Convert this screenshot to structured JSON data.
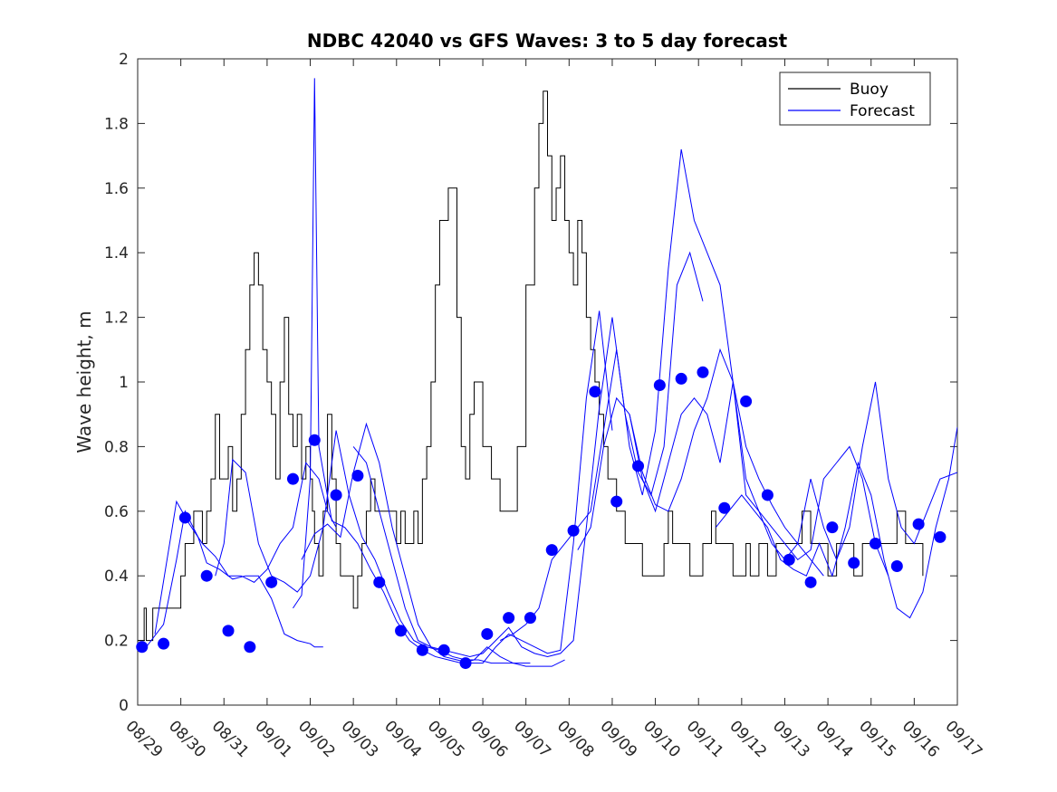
{
  "chart_data": {
    "type": "line",
    "title": "NDBC 42040 vs GFS Waves: 3 to 5 day forecast",
    "xlabel": "",
    "ylabel": "Wave height, m",
    "xlim": [
      0,
      19
    ],
    "ylim": [
      0,
      2
    ],
    "yticks": [
      0,
      0.2,
      0.4,
      0.6,
      0.8,
      1,
      1.2,
      1.4,
      1.6,
      1.8,
      2
    ],
    "ytick_labels": [
      "0",
      "0.2",
      "0.4",
      "0.6",
      "0.8",
      "1",
      "1.2",
      "1.4",
      "1.6",
      "1.8",
      "2"
    ],
    "xticks": [
      0,
      1,
      2,
      3,
      4,
      5,
      6,
      7,
      8,
      9,
      10,
      11,
      12,
      13,
      14,
      15,
      16,
      17,
      18,
      19
    ],
    "xtick_labels": [
      "08/29",
      "08/30",
      "08/31",
      "09/01",
      "09/02",
      "09/03",
      "09/04",
      "09/05",
      "09/06",
      "09/07",
      "09/08",
      "09/09",
      "09/10",
      "09/11",
      "09/12",
      "09/13",
      "09/14",
      "09/15",
      "09/16",
      "09/17"
    ],
    "x_unit": "days since 08/29 00:00",
    "legend": {
      "position": "top-right",
      "entries": [
        {
          "label": "Buoy",
          "color": "#000000"
        },
        {
          "label": "Forecast",
          "color": "#0000ff"
        }
      ]
    },
    "series": [
      {
        "name": "Buoy",
        "color": "#000000",
        "style": "step",
        "x": [
          0,
          0.15,
          0.2,
          0.25,
          0.35,
          0.55,
          0.75,
          1.0,
          1.1,
          1.3,
          1.5,
          1.6,
          1.7,
          1.8,
          1.9,
          2.0,
          2.1,
          2.2,
          2.3,
          2.4,
          2.5,
          2.6,
          2.7,
          2.8,
          2.9,
          3.0,
          3.1,
          3.2,
          3.3,
          3.4,
          3.5,
          3.6,
          3.7,
          3.8,
          3.9,
          4.0,
          4.05,
          4.1,
          4.2,
          4.3,
          4.4,
          4.5,
          4.6,
          4.7,
          4.8,
          4.9,
          5.0,
          5.1,
          5.2,
          5.3,
          5.4,
          5.5,
          5.6,
          5.7,
          5.8,
          5.9,
          6.0,
          6.1,
          6.2,
          6.3,
          6.4,
          6.5,
          6.6,
          6.7,
          6.8,
          6.9,
          7.0,
          7.2,
          7.4,
          7.5,
          7.6,
          7.7,
          7.8,
          8.0,
          8.2,
          8.4,
          8.6,
          8.8,
          9.0,
          9.2,
          9.3,
          9.4,
          9.5,
          9.6,
          9.7,
          9.8,
          9.9,
          10.0,
          10.1,
          10.2,
          10.3,
          10.4,
          10.5,
          10.6,
          10.7,
          10.8,
          10.9,
          11.0,
          11.1,
          11.2,
          11.3,
          11.4,
          11.5,
          11.6,
          11.7,
          11.8,
          11.9,
          12.0,
          12.1,
          12.2,
          12.3,
          12.4,
          12.5,
          12.6,
          12.7,
          12.8,
          12.9,
          13.0,
          13.1,
          13.2,
          13.3,
          13.4,
          13.5,
          13.6,
          13.7,
          13.8,
          13.9,
          14.0,
          14.1,
          14.2,
          14.4,
          14.6,
          14.8,
          15.0,
          15.2,
          15.4,
          15.6,
          15.8,
          16.0,
          16.2,
          16.4,
          16.6,
          16.8,
          17.0,
          17.2,
          17.4,
          17.6,
          17.8,
          18.0,
          18.2
        ],
        "y": [
          0.2,
          0.3,
          0.2,
          0.2,
          0.3,
          0.3,
          0.3,
          0.4,
          0.5,
          0.6,
          0.5,
          0.6,
          0.7,
          0.9,
          0.7,
          0.7,
          0.8,
          0.6,
          0.7,
          0.9,
          1.1,
          1.3,
          1.4,
          1.3,
          1.1,
          1.0,
          0.9,
          0.7,
          1.0,
          1.2,
          0.9,
          0.8,
          0.9,
          0.7,
          0.8,
          0.7,
          0.6,
          0.5,
          0.4,
          0.6,
          0.9,
          0.7,
          0.5,
          0.4,
          0.4,
          0.4,
          0.3,
          0.4,
          0.5,
          0.6,
          0.7,
          0.6,
          0.6,
          0.6,
          0.6,
          0.6,
          0.5,
          0.6,
          0.5,
          0.5,
          0.6,
          0.5,
          0.7,
          0.8,
          1.0,
          1.3,
          1.5,
          1.6,
          1.2,
          0.8,
          0.7,
          0.9,
          1.0,
          0.8,
          0.7,
          0.6,
          0.6,
          0.8,
          1.3,
          1.6,
          1.8,
          1.9,
          1.7,
          1.5,
          1.6,
          1.7,
          1.5,
          1.4,
          1.3,
          1.5,
          1.4,
          1.2,
          1.1,
          1.0,
          0.9,
          0.8,
          0.7,
          0.7,
          0.6,
          0.6,
          0.5,
          0.5,
          0.5,
          0.5,
          0.4,
          0.4,
          0.4,
          0.4,
          0.4,
          0.5,
          0.6,
          0.5,
          0.5,
          0.5,
          0.5,
          0.4,
          0.4,
          0.4,
          0.5,
          0.5,
          0.6,
          0.5,
          0.5,
          0.5,
          0.5,
          0.4,
          0.4,
          0.4,
          0.5,
          0.4,
          0.5,
          0.4,
          0.5,
          0.5,
          0.5,
          0.6,
          0.5,
          0.5,
          0.4,
          0.5,
          0.5,
          0.4,
          0.5,
          0.5,
          0.5,
          0.5,
          0.6,
          0.5,
          0.5,
          0.4
        ]
      },
      {
        "name": "Forecast run 1",
        "color": "#0000ff",
        "x": [
          0.2,
          0.6,
          0.9,
          1.1,
          1.4,
          1.6,
          1.9,
          2.2,
          2.5,
          2.8,
          3.1,
          3.4,
          3.7,
          4.0,
          4.1,
          4.2,
          4.3
        ],
        "y": [
          0.18,
          0.25,
          0.45,
          0.6,
          0.52,
          0.44,
          0.42,
          0.39,
          0.4,
          0.4,
          0.33,
          0.22,
          0.2,
          0.19,
          0.18,
          0.18,
          0.18
        ]
      },
      {
        "name": "Forecast run 2",
        "color": "#0000ff",
        "x": [
          0.4,
          0.9,
          1.2,
          1.5,
          1.8,
          2.1,
          2.4,
          2.7,
          3.0,
          3.3,
          3.6,
          3.9,
          4.2,
          4.4,
          4.6
        ],
        "y": [
          0.22,
          0.63,
          0.56,
          0.5,
          0.46,
          0.4,
          0.4,
          0.38,
          0.42,
          0.5,
          0.55,
          0.75,
          0.7,
          0.6,
          0.55
        ]
      },
      {
        "name": "Forecast run 3",
        "color": "#0000ff",
        "x": [
          1.8,
          2.0,
          2.2,
          2.5,
          2.8,
          3.1,
          3.4,
          3.7,
          4.0,
          4.3,
          4.6,
          4.9,
          5.2,
          5.5,
          5.8,
          6.1,
          6.4,
          6.7,
          7.0,
          7.3,
          7.6,
          7.9,
          8.2,
          8.5,
          8.8,
          9.1
        ],
        "y": [
          0.4,
          0.5,
          0.76,
          0.72,
          0.5,
          0.4,
          0.38,
          0.35,
          0.4,
          0.55,
          0.85,
          0.65,
          0.52,
          0.45,
          0.35,
          0.26,
          0.2,
          0.18,
          0.17,
          0.15,
          0.14,
          0.14,
          0.13,
          0.13,
          0.13,
          0.13
        ]
      },
      {
        "name": "Forecast run 4",
        "color": "#0000ff",
        "x": [
          3.6,
          3.8,
          4.0,
          4.1,
          4.2,
          4.5,
          4.8,
          5.1,
          5.4,
          5.7,
          6.0,
          6.3,
          6.6,
          6.9,
          7.2,
          7.5,
          7.8,
          8.1,
          8.4,
          8.7,
          9.0,
          9.3,
          9.6,
          9.9
        ],
        "y": [
          0.3,
          0.34,
          0.7,
          1.94,
          0.8,
          0.57,
          0.55,
          0.5,
          0.42,
          0.35,
          0.26,
          0.2,
          0.17,
          0.15,
          0.14,
          0.13,
          0.14,
          0.18,
          0.15,
          0.13,
          0.12,
          0.12,
          0.12,
          0.14
        ]
      },
      {
        "name": "Forecast run 5",
        "color": "#0000ff",
        "x": [
          3.8,
          4.1,
          4.4,
          4.7,
          5.0,
          5.3,
          5.6,
          5.9,
          6.2,
          6.5,
          6.8,
          7.1,
          7.4,
          7.7,
          8.0,
          8.3,
          8.6,
          8.9,
          9.2,
          9.5,
          9.8,
          10.1,
          10.4,
          10.7,
          11.0
        ],
        "y": [
          0.45,
          0.53,
          0.56,
          0.52,
          0.72,
          0.87,
          0.75,
          0.55,
          0.4,
          0.25,
          0.18,
          0.15,
          0.14,
          0.13,
          0.13,
          0.18,
          0.22,
          0.2,
          0.18,
          0.16,
          0.17,
          0.5,
          0.95,
          1.22,
          0.85
        ]
      },
      {
        "name": "Forecast run 6",
        "color": "#0000ff",
        "x": [
          5.0,
          5.3,
          5.6,
          5.9,
          6.2,
          6.5,
          6.8,
          7.1,
          7.4,
          7.7,
          8.0,
          8.3,
          8.6,
          8.9,
          9.2,
          9.5,
          9.8,
          10.1,
          10.4,
          10.7,
          11.0,
          11.3,
          11.6,
          11.9,
          12.2,
          12.5,
          12.8,
          13.1
        ],
        "y": [
          0.8,
          0.75,
          0.6,
          0.45,
          0.3,
          0.2,
          0.18,
          0.17,
          0.16,
          0.15,
          0.16,
          0.2,
          0.24,
          0.18,
          0.16,
          0.15,
          0.16,
          0.2,
          0.55,
          0.92,
          1.2,
          0.9,
          0.72,
          0.65,
          0.8,
          1.3,
          1.4,
          1.25
        ]
      },
      {
        "name": "Forecast run 7",
        "color": "#0000ff",
        "x": [
          8.4,
          8.7,
          9.0,
          9.3,
          9.6,
          9.9,
          10.2,
          10.5,
          10.8,
          11.1,
          11.4,
          11.7,
          12.0,
          12.3,
          12.6,
          12.9,
          13.2,
          13.5,
          13.8,
          14.1,
          14.4,
          14.7,
          15.0,
          15.3,
          15.6,
          15.9
        ],
        "y": [
          0.2,
          0.22,
          0.25,
          0.3,
          0.45,
          0.5,
          0.55,
          0.6,
          0.85,
          1.1,
          0.8,
          0.65,
          0.85,
          1.35,
          1.72,
          1.5,
          1.4,
          1.3,
          1.0,
          0.8,
          0.7,
          0.62,
          0.55,
          0.5,
          0.45,
          0.4
        ]
      },
      {
        "name": "Forecast run 8",
        "color": "#0000ff",
        "x": [
          10.2,
          10.5,
          10.8,
          11.1,
          11.4,
          11.7,
          12.0,
          12.3,
          12.6,
          12.9,
          13.2,
          13.5,
          13.8,
          14.1,
          14.4,
          14.7,
          15.0,
          15.3,
          15.6,
          15.9,
          16.2,
          16.5,
          16.8,
          17.1,
          17.4
        ],
        "y": [
          0.48,
          0.55,
          0.8,
          0.95,
          0.9,
          0.72,
          0.62,
          0.6,
          0.7,
          0.85,
          0.95,
          1.1,
          1.0,
          0.7,
          0.6,
          0.55,
          0.5,
          0.45,
          0.48,
          0.7,
          0.75,
          0.8,
          0.7,
          0.5,
          0.4
        ]
      },
      {
        "name": "Forecast run 9",
        "color": "#0000ff",
        "x": [
          11.4,
          11.7,
          12.0,
          12.3,
          12.6,
          12.9,
          13.2,
          13.5,
          13.8,
          14.1,
          14.4,
          14.7,
          15.0,
          15.3,
          15.6,
          15.9,
          16.2,
          16.5,
          16.8,
          17.1,
          17.4,
          17.7,
          18.0,
          18.3,
          18.6,
          19.0
        ],
        "y": [
          0.9,
          0.7,
          0.6,
          0.75,
          0.9,
          0.95,
          0.9,
          0.75,
          1.0,
          0.65,
          0.6,
          0.5,
          0.45,
          0.5,
          0.7,
          0.55,
          0.45,
          0.55,
          0.8,
          1.0,
          0.7,
          0.55,
          0.5,
          0.6,
          0.7,
          0.72
        ]
      },
      {
        "name": "Forecast run 10",
        "color": "#0000ff",
        "x": [
          13.4,
          13.7,
          14.0,
          14.3,
          14.6,
          14.9,
          15.2,
          15.5,
          15.8,
          16.1,
          16.4,
          16.7,
          17.0,
          17.3,
          17.6,
          17.9,
          18.2,
          18.5,
          18.8,
          19.0
        ],
        "y": [
          0.55,
          0.6,
          0.65,
          0.6,
          0.55,
          0.45,
          0.42,
          0.4,
          0.5,
          0.4,
          0.55,
          0.75,
          0.65,
          0.45,
          0.3,
          0.27,
          0.35,
          0.55,
          0.7,
          0.86
        ]
      }
    ],
    "markers": {
      "name": "Forecast mean",
      "color": "#0000ff",
      "x": [
        0.1,
        0.6,
        1.1,
        1.6,
        2.1,
        2.6,
        3.1,
        3.6,
        4.1,
        4.6,
        5.1,
        5.6,
        6.1,
        6.6,
        7.1,
        7.6,
        8.1,
        8.6,
        9.1,
        9.6,
        10.1,
        10.6,
        11.1,
        11.6,
        12.1,
        12.6,
        13.1,
        13.6,
        14.1,
        14.6,
        15.1,
        15.6,
        16.1,
        16.6,
        17.1,
        17.6,
        18.1,
        18.6
      ],
      "y": [
        0.18,
        0.19,
        0.58,
        0.4,
        0.23,
        0.18,
        0.38,
        0.7,
        0.82,
        0.65,
        0.71,
        0.38,
        0.23,
        0.17,
        0.17,
        0.13,
        0.22,
        0.27,
        0.27,
        0.48,
        0.54,
        0.97,
        0.63,
        0.74,
        0.99,
        1.01,
        1.03,
        0.61,
        0.94,
        0.65,
        0.45,
        0.38,
        0.55,
        0.44,
        0.5,
        0.43,
        0.56,
        0.52
      ]
    }
  }
}
